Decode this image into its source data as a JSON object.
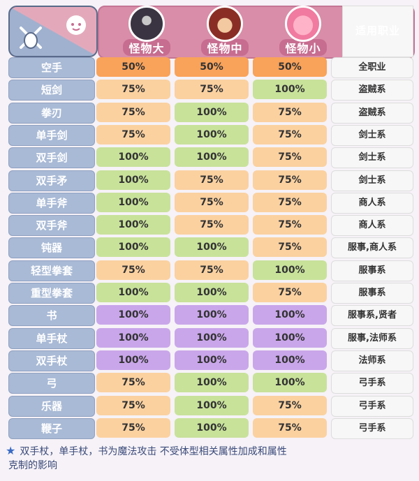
{
  "colors": {
    "orange": "#f9a25a",
    "peach": "#fbd1a0",
    "green": "#c8e29a",
    "purple": "#c9a6ea"
  },
  "header": {
    "icons": [
      "sword-shield-icon",
      "smile-face-icon"
    ],
    "columns": [
      "怪物大",
      "怪物中",
      "怪物小"
    ],
    "job_header": "适用职业"
  },
  "rows": [
    {
      "weapon": "空手",
      "v": [
        "50%",
        "50%",
        "50%"
      ],
      "c": [
        "orange",
        "orange",
        "orange"
      ],
      "job": "全职业"
    },
    {
      "weapon": "短剑",
      "v": [
        "75%",
        "75%",
        "100%"
      ],
      "c": [
        "peach",
        "peach",
        "green"
      ],
      "job": "盗贼系"
    },
    {
      "weapon": "拳刃",
      "v": [
        "75%",
        "100%",
        "75%"
      ],
      "c": [
        "peach",
        "green",
        "peach"
      ],
      "job": "盗贼系"
    },
    {
      "weapon": "单手剑",
      "v": [
        "75%",
        "100%",
        "75%"
      ],
      "c": [
        "peach",
        "green",
        "peach"
      ],
      "job": "剑士系"
    },
    {
      "weapon": "双手剑",
      "v": [
        "100%",
        "100%",
        "75%"
      ],
      "c": [
        "green",
        "green",
        "peach"
      ],
      "job": "剑士系"
    },
    {
      "weapon": "双手矛",
      "v": [
        "100%",
        "75%",
        "75%"
      ],
      "c": [
        "green",
        "peach",
        "peach"
      ],
      "job": "剑士系"
    },
    {
      "weapon": "单手斧",
      "v": [
        "100%",
        "75%",
        "75%"
      ],
      "c": [
        "green",
        "peach",
        "peach"
      ],
      "job": "商人系"
    },
    {
      "weapon": "双手斧",
      "v": [
        "100%",
        "75%",
        "75%"
      ],
      "c": [
        "green",
        "peach",
        "peach"
      ],
      "job": "商人系"
    },
    {
      "weapon": "钝器",
      "v": [
        "100%",
        "100%",
        "75%"
      ],
      "c": [
        "green",
        "green",
        "peach"
      ],
      "job": "服事,商人系"
    },
    {
      "weapon": "轻型拳套",
      "v": [
        "75%",
        "75%",
        "100%"
      ],
      "c": [
        "peach",
        "peach",
        "green"
      ],
      "job": "服事系"
    },
    {
      "weapon": "重型拳套",
      "v": [
        "100%",
        "100%",
        "75%"
      ],
      "c": [
        "green",
        "green",
        "peach"
      ],
      "job": "服事系"
    },
    {
      "weapon": "书",
      "v": [
        "100%",
        "100%",
        "100%"
      ],
      "c": [
        "purple",
        "purple",
        "purple"
      ],
      "job": "服事系,贤者"
    },
    {
      "weapon": "单手杖",
      "v": [
        "100%",
        "100%",
        "100%"
      ],
      "c": [
        "purple",
        "purple",
        "purple"
      ],
      "job": "服事,法师系"
    },
    {
      "weapon": "双手杖",
      "v": [
        "100%",
        "100%",
        "100%"
      ],
      "c": [
        "purple",
        "purple",
        "purple"
      ],
      "job": "法师系"
    },
    {
      "weapon": "弓",
      "v": [
        "75%",
        "100%",
        "100%"
      ],
      "c": [
        "peach",
        "green",
        "green"
      ],
      "job": "弓手系"
    },
    {
      "weapon": "乐器",
      "v": [
        "75%",
        "100%",
        "75%"
      ],
      "c": [
        "peach",
        "green",
        "peach"
      ],
      "job": "弓手系"
    },
    {
      "weapon": "鞭子",
      "v": [
        "75%",
        "100%",
        "75%"
      ],
      "c": [
        "peach",
        "green",
        "peach"
      ],
      "job": "弓手系"
    }
  ],
  "footer": {
    "line1": "双手杖，单手杖，书为魔法攻击  不受体型相关属性加成和属性",
    "line2": "克制的影响"
  }
}
